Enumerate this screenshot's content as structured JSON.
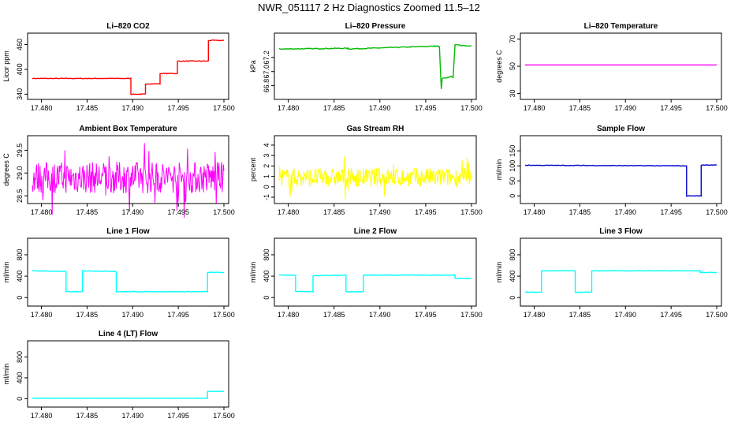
{
  "title": "NWR_051117  2 Hz Diagnostics Zoomed 11.5–12",
  "chart_data": [
    {
      "type": "line",
      "title": "Li–820 CO2",
      "xlabel": "",
      "ylabel": "Licor ppm",
      "color": "#ff0000",
      "xlim": [
        17.479,
        17.5
      ],
      "ylim": [
        335,
        480
      ],
      "xticks": [
        "17.480",
        "17.485",
        "17.490",
        "17.495",
        "17.500"
      ],
      "yticks": [
        340,
        400,
        460
      ],
      "series": [
        {
          "x": [
            17.479,
            17.4898,
            17.4898,
            17.4914,
            17.4914,
            17.493,
            17.493,
            17.4949,
            17.4949,
            17.4983,
            17.4983,
            17.5
          ],
          "y": [
            378,
            378,
            340,
            340,
            365,
            365,
            390,
            390,
            420,
            420,
            470,
            470
          ]
        }
      ],
      "noise": 0.8,
      "hold_after": [
        17.4983,
        360
      ]
    },
    {
      "type": "line",
      "title": "Li–820 Pressure",
      "xlabel": "",
      "ylabel": "kPa",
      "color": "#00bb00",
      "xlim": [
        17.479,
        17.5
      ],
      "ylim": [
        66.65,
        67.5
      ],
      "xticks": [
        "17.480",
        "17.485",
        "17.490",
        "17.495",
        "17.500"
      ],
      "yticks": [
        "66.8",
        "67.0",
        "67.2"
      ],
      "series": [
        {
          "x": [
            17.479,
            17.4865,
            17.4865,
            17.496,
            17.4965,
            17.4967,
            17.4968,
            17.4978,
            17.498,
            17.4982,
            17.5
          ],
          "y": [
            67.32,
            67.33,
            67.32,
            67.36,
            67.36,
            66.75,
            66.9,
            66.93,
            66.92,
            67.38,
            67.36
          ]
        }
      ],
      "noise": 0.006
    },
    {
      "type": "line",
      "title": "Li–820 Temperature",
      "xlabel": "",
      "ylabel": "degrees C",
      "color": "#ff00ff",
      "xlim": [
        17.479,
        17.5
      ],
      "ylim": [
        28,
        72
      ],
      "xticks": [
        "17.480",
        "17.485",
        "17.490",
        "17.495",
        "17.500"
      ],
      "yticks": [
        30,
        50,
        70
      ],
      "series": [
        {
          "x": [
            17.479,
            17.5
          ],
          "y": [
            51,
            51
          ]
        }
      ],
      "noise": 0
    },
    {
      "type": "line",
      "title": "Ambient Box Temperature",
      "xlabel": "",
      "ylabel": "degrees C",
      "color": "#ff00ff",
      "xlim": [
        17.479,
        17.5
      ],
      "ylim": [
        28.4,
        29.75
      ],
      "xticks": [
        "17.480",
        "17.485",
        "17.490",
        "17.495",
        "17.500"
      ],
      "yticks": [
        "28.5",
        "29.0",
        "29.5"
      ],
      "series": [
        {
          "x": [
            17.479,
            17.5
          ],
          "y": [
            28.9,
            28.9
          ]
        }
      ],
      "noise": 0.35,
      "noisy": true
    },
    {
      "type": "line",
      "title": "Gas Stream RH",
      "xlabel": "",
      "ylabel": "percent",
      "color": "#ffff00",
      "xlim": [
        17.479,
        17.5
      ],
      "ylim": [
        -1.3,
        4.6
      ],
      "xticks": [
        "17.480",
        "17.485",
        "17.490",
        "17.495",
        "17.500"
      ],
      "yticks": [
        -1,
        0,
        1,
        2,
        3,
        4
      ],
      "series": [
        {
          "x": [
            17.479,
            17.5
          ],
          "y": [
            0.9,
            0.9
          ]
        }
      ],
      "noise": 0.9,
      "noisy": true
    },
    {
      "type": "line",
      "title": "Sample Flow",
      "xlabel": "",
      "ylabel": "ml/min",
      "color": "#0000cc",
      "xlim": [
        17.479,
        17.5
      ],
      "ylim": [
        -15,
        190
      ],
      "xticks": [
        "17.480",
        "17.485",
        "17.490",
        "17.495",
        "17.500"
      ],
      "yticks": [
        0,
        50,
        100,
        150
      ],
      "series": [
        {
          "x": [
            17.479,
            17.4967,
            17.4967,
            17.4983,
            17.4983,
            17.5
          ],
          "y": [
            102,
            100,
            0,
            0,
            103,
            103
          ]
        }
      ],
      "noise": 1.0
    },
    {
      "type": "line",
      "title": "Line 1 Flow",
      "xlabel": "",
      "ylabel": "ml/min",
      "color": "#00ffff",
      "xlim": [
        17.479,
        17.5
      ],
      "ylim": [
        -100,
        1050
      ],
      "xticks": [
        "17.480",
        "17.485",
        "17.490",
        "17.495",
        "17.500"
      ],
      "yticks": [
        0,
        400,
        800
      ],
      "series": [
        {
          "x": [
            17.479,
            17.4827,
            17.4827,
            17.4845,
            17.4845,
            17.4882,
            17.4882,
            17.4982,
            17.4982,
            17.5
          ],
          "y": [
            500,
            490,
            110,
            110,
            500,
            490,
            110,
            110,
            470,
            470
          ]
        }
      ],
      "noise": 5
    },
    {
      "type": "line",
      "title": "Line 2 Flow",
      "xlabel": "",
      "ylabel": "ml/min",
      "color": "#00ffff",
      "xlim": [
        17.479,
        17.5
      ],
      "ylim": [
        -100,
        1050
      ],
      "xticks": [
        "17.480",
        "17.485",
        "17.490",
        "17.495",
        "17.500"
      ],
      "yticks": [
        0,
        400,
        800
      ],
      "series": [
        {
          "x": [
            17.479,
            17.4808,
            17.4808,
            17.4827,
            17.4827,
            17.4863,
            17.4863,
            17.4882,
            17.4882,
            17.4982,
            17.4982,
            17.5
          ],
          "y": [
            420,
            420,
            110,
            110,
            410,
            420,
            110,
            110,
            420,
            420,
            360,
            360
          ]
        }
      ],
      "noise": 5
    },
    {
      "type": "line",
      "title": "Line 3 Flow",
      "xlabel": "",
      "ylabel": "ml/min",
      "color": "#00ffff",
      "xlim": [
        17.479,
        17.5
      ],
      "ylim": [
        -100,
        1050
      ],
      "xticks": [
        "17.480",
        "17.485",
        "17.490",
        "17.495",
        "17.500"
      ],
      "yticks": [
        0,
        400,
        800
      ],
      "series": [
        {
          "x": [
            17.479,
            17.4808,
            17.4808,
            17.4845,
            17.4845,
            17.4863,
            17.4863,
            17.4982,
            17.4982,
            17.5
          ],
          "y": [
            100,
            100,
            500,
            500,
            100,
            100,
            500,
            500,
            470,
            470
          ]
        }
      ],
      "noise": 5
    },
    {
      "type": "line",
      "title": "Line 4 (LT) Flow",
      "xlabel": "",
      "ylabel": "ml/min",
      "color": "#00ffff",
      "xlim": [
        17.479,
        17.5
      ],
      "ylim": [
        -100,
        1050
      ],
      "xticks": [
        "17.480",
        "17.485",
        "17.490",
        "17.495",
        "17.500"
      ],
      "yticks": [
        0,
        400,
        800
      ],
      "series": [
        {
          "x": [
            17.479,
            17.4982,
            17.4982,
            17.5
          ],
          "y": [
            10,
            10,
            140,
            140
          ]
        }
      ],
      "noise": 2
    }
  ]
}
